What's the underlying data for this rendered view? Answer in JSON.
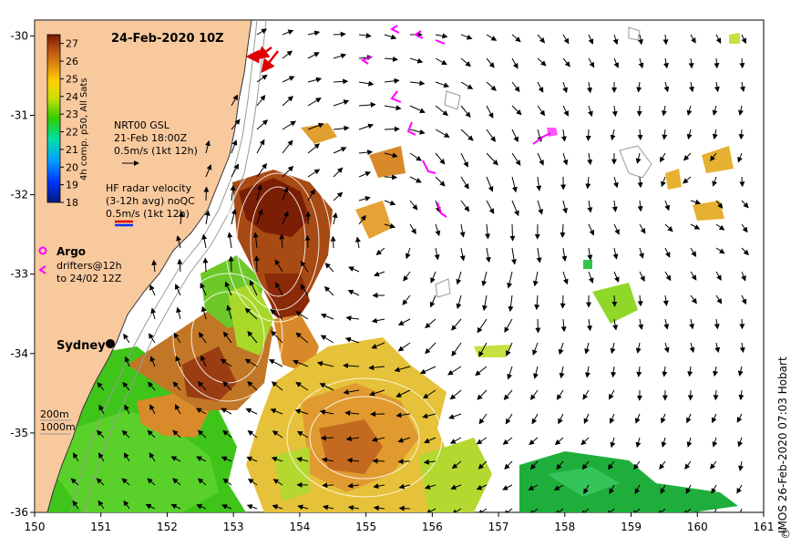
{
  "map": {
    "title": "24-Feb-2020 10Z",
    "lon_ticks": [
      "150",
      "151",
      "152",
      "153",
      "154",
      "155",
      "156",
      "157",
      "158",
      "159",
      "160",
      "161"
    ],
    "lat_ticks": [
      "-30",
      "-31",
      "-32",
      "-33",
      "-34",
      "-35",
      "-36"
    ],
    "extent": {
      "lon": [
        150,
        161
      ],
      "lat": [
        -36,
        -29.8
      ]
    },
    "colors": {
      "land": "#f9c99e",
      "coast_grey": "#9a9a9a",
      "radar_arrow": "#e00000",
      "argo": "#ff00ff"
    },
    "city": {
      "name": "Sydney",
      "lon": 151.15,
      "lat": -33.87
    }
  },
  "colorbar": {
    "label": "4h comp. p50, All Sats",
    "ticks": [
      "27",
      "26",
      "25",
      "24",
      "23",
      "22",
      "21",
      "20",
      "19",
      "18"
    ],
    "range": [
      18,
      27.5
    ]
  },
  "legend": {
    "gsl": {
      "line1": "NRT00 GSL",
      "line2": "21-Feb 18:00Z",
      "line3": "0.5m/s (1kt 12h)"
    },
    "radar": {
      "line1": "HF radar velocity",
      "line2": "(3-12h avg) noQC",
      "line3": "0.5m/s (1kt 12h)"
    },
    "argo": {
      "title": "Argo",
      "line1": "drifters@12h",
      "line2": "to 24/02 12Z"
    },
    "depth": {
      "line1": "200m",
      "line2": "1000m"
    }
  },
  "credit": "IMOS 26-Feb-2020 07:03 Hobart",
  "copyright_symbol": "©"
}
